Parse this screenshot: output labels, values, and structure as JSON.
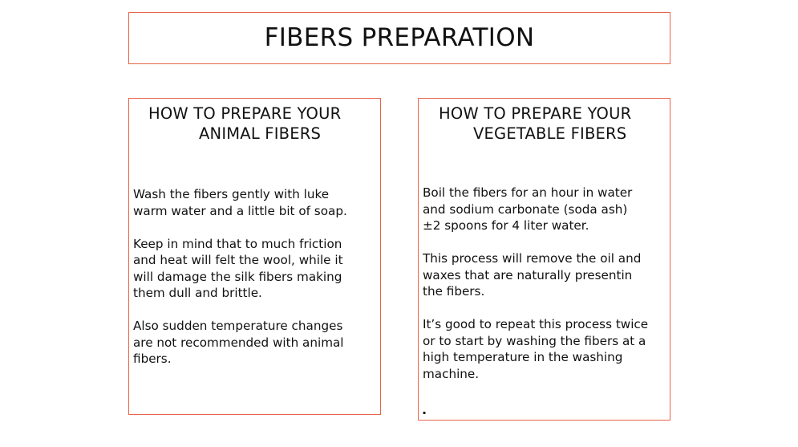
{
  "title": "FIBERS PREPARATION",
  "left_card": {
    "heading_line1": "HOW TO PREPARE YOUR",
    "heading_line2": "ANIMAL FIBERS",
    "paragraphs": [
      "Wash the fibers gently with luke\nwarm water and a little bit of soap.",
      "Keep in mind that to much friction\nand heat will felt the wool, while it\nwill damage the silk fibers making\nthem dull and brittle.",
      "Also sudden temperature changes\nare not recommended with animal\nfibers."
    ]
  },
  "right_card": {
    "heading_line1": "HOW TO PREPARE YOUR",
    "heading_line2": "VEGETABLE FIBERS",
    "paragraphs": [
      "Boil the fibers for an hour in water\nand sodium carbonate (soda ash)\n±2 spoons for 4 liter water.",
      "This process will remove the oil and\nwaxes that are naturally presentin\nthe fibers.",
      "It’s good to repeat this process twice\nor to start by washing the fibers at a\nhigh temperature in the washing\nmachine."
    ],
    "trailing_mark": "."
  },
  "colors": {
    "border": "#e8654a",
    "text": "#111111",
    "background": "#ffffff"
  }
}
